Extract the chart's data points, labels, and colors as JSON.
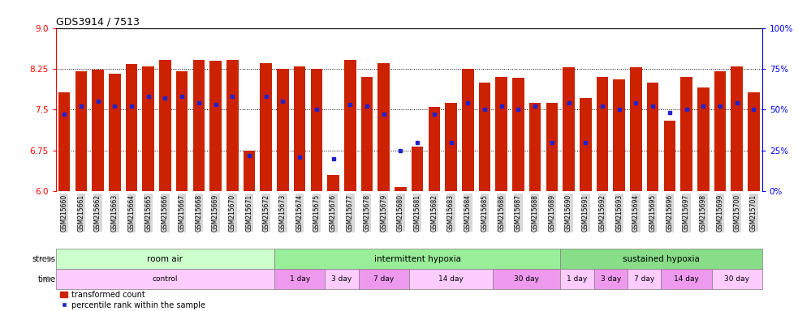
{
  "title": "GDS3914 / 7513",
  "samples": [
    "GSM215660",
    "GSM215661",
    "GSM215662",
    "GSM215663",
    "GSM215664",
    "GSM215665",
    "GSM215666",
    "GSM215667",
    "GSM215668",
    "GSM215669",
    "GSM215670",
    "GSM215671",
    "GSM215672",
    "GSM215673",
    "GSM215674",
    "GSM215675",
    "GSM215676",
    "GSM215677",
    "GSM215678",
    "GSM215679",
    "GSM215680",
    "GSM215681",
    "GSM215682",
    "GSM215683",
    "GSM215684",
    "GSM215685",
    "GSM215686",
    "GSM215687",
    "GSM215688",
    "GSM215689",
    "GSM215690",
    "GSM215691",
    "GSM215692",
    "GSM215693",
    "GSM215694",
    "GSM215695",
    "GSM215696",
    "GSM215697",
    "GSM215698",
    "GSM215699",
    "GSM215700",
    "GSM215701"
  ],
  "bar_values": [
    7.82,
    8.2,
    8.24,
    8.16,
    8.34,
    8.3,
    8.42,
    8.2,
    8.42,
    8.4,
    8.42,
    6.74,
    8.35,
    8.25,
    8.3,
    8.25,
    6.3,
    8.42,
    8.1,
    8.35,
    6.07,
    6.82,
    7.55,
    7.62,
    8.25,
    8.0,
    8.1,
    8.08,
    7.62,
    7.62,
    8.28,
    7.72,
    8.1,
    8.05,
    8.28,
    8.0,
    7.3,
    8.1,
    7.9,
    8.2,
    8.3,
    7.82
  ],
  "percentile_values": [
    47,
    52,
    55,
    52,
    52,
    58,
    57,
    58,
    54,
    53,
    58,
    22,
    58,
    55,
    21,
    50,
    20,
    53,
    52,
    47,
    25,
    30,
    47,
    30,
    54,
    50,
    52,
    50,
    52,
    30,
    54,
    30,
    52,
    50,
    54,
    52,
    48,
    50,
    52,
    52,
    54,
    50
  ],
  "ylim_left": [
    6.0,
    9.0
  ],
  "ylim_right": [
    0,
    100
  ],
  "yticks_left": [
    6.0,
    6.75,
    7.5,
    8.25,
    9.0
  ],
  "yticks_right": [
    0,
    25,
    50,
    75,
    100
  ],
  "bar_color": "#cc2200",
  "dot_color": "#2222cc",
  "stress_groups": [
    {
      "label": "room air",
      "start": 0,
      "end": 13,
      "color": "#ccffcc"
    },
    {
      "label": "intermittent hypoxia",
      "start": 13,
      "end": 30,
      "color": "#99ee99"
    },
    {
      "label": "sustained hypoxia",
      "start": 30,
      "end": 42,
      "color": "#88dd88"
    }
  ],
  "time_groups": [
    {
      "label": "control",
      "start": 0,
      "end": 13,
      "color": "#ffccff"
    },
    {
      "label": "1 day",
      "start": 13,
      "end": 16,
      "color": "#ee99ee"
    },
    {
      "label": "3 day",
      "start": 16,
      "end": 18,
      "color": "#ffccff"
    },
    {
      "label": "7 day",
      "start": 18,
      "end": 21,
      "color": "#ee99ee"
    },
    {
      "label": "14 day",
      "start": 21,
      "end": 26,
      "color": "#ffccff"
    },
    {
      "label": "30 day",
      "start": 26,
      "end": 30,
      "color": "#ee99ee"
    },
    {
      "label": "1 day",
      "start": 30,
      "end": 32,
      "color": "#ffccff"
    },
    {
      "label": "3 day",
      "start": 32,
      "end": 34,
      "color": "#ee99ee"
    },
    {
      "label": "7 day",
      "start": 34,
      "end": 36,
      "color": "#ffccff"
    },
    {
      "label": "14 day",
      "start": 36,
      "end": 39,
      "color": "#ee99ee"
    },
    {
      "label": "30 day",
      "start": 39,
      "end": 42,
      "color": "#ffccff"
    }
  ],
  "stress_label": "stress",
  "time_label": "time",
  "legend_red": "transformed count",
  "legend_blue": "percentile rank within the sample"
}
